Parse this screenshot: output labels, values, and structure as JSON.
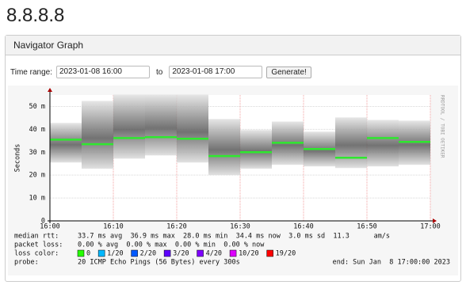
{
  "page_title": "8.8.8.8",
  "panel": {
    "header": "Navigator Graph"
  },
  "form": {
    "time_range_label": "Time range:",
    "start": "2023-01-08 16:00",
    "to_label": "to",
    "end": "2023-01-08 17:00",
    "button": "Generate!"
  },
  "chart_data": {
    "type": "smoke",
    "ylabel": "Seconds",
    "side_note": "RRDTOOL / TOBI OETIKER",
    "x": [
      "16:00",
      "16:05",
      "16:10",
      "16:15",
      "16:20",
      "16:25",
      "16:30",
      "16:35",
      "16:40",
      "16:45",
      "16:50",
      "16:55"
    ],
    "xlim": [
      "16:00",
      "17:00"
    ],
    "xticks": [
      "16:00",
      "16:10",
      "16:20",
      "16:30",
      "16:40",
      "16:50",
      "17:00"
    ],
    "ylim": [
      0,
      0.055
    ],
    "yticks": [
      0,
      {
        "value": 0.01,
        "label": "10 m"
      },
      {
        "value": 0.02,
        "label": "20 m"
      },
      {
        "value": 0.03,
        "label": "30 m"
      },
      {
        "value": 0.04,
        "label": "40 m"
      },
      {
        "value": 0.05,
        "label": "50 m"
      }
    ],
    "grid": true,
    "series": [
      {
        "name": "median",
        "color": "#2ee82e",
        "values": [
          0.0355,
          0.0335,
          0.0362,
          0.0366,
          0.0359,
          0.0283,
          0.03,
          0.0341,
          0.0314,
          0.0276,
          0.0362,
          0.0345
        ]
      },
      {
        "name": "min",
        "color": "#bdbdbd",
        "values": [
          0.0255,
          0.0228,
          0.0272,
          0.0286,
          0.0255,
          0.02,
          0.0228,
          0.0245,
          0.0238,
          0.0231,
          0.0238,
          0.0245
        ]
      },
      {
        "name": "max",
        "color": "#bdbdbd",
        "values": [
          0.0428,
          0.0524,
          0.0552,
          0.0552,
          0.0552,
          0.0445,
          0.0397,
          0.0434,
          0.039,
          0.0452,
          0.0441,
          0.0438
        ]
      }
    ],
    "stats": [
      {
        "label": "median rtt:",
        "text": "33.7 ms avg  36.9 ms max  28.0 ms min  34.4 ms now  3.0 ms sd  11.3      am/s"
      },
      {
        "label": "packet loss:",
        "text": "0.00 % avg  0.00 % max  0.00 % min  0.00 % now"
      }
    ],
    "loss_label": "loss color:",
    "loss_colors": [
      {
        "name": "0",
        "color": "#26ff00"
      },
      {
        "name": "1/20",
        "color": "#00b8ff"
      },
      {
        "name": "2/20",
        "color": "#0059ff"
      },
      {
        "name": "3/20",
        "color": "#5e00ff"
      },
      {
        "name": "4/20",
        "color": "#7e00ff"
      },
      {
        "name": "10/20",
        "color": "#dd00ff"
      },
      {
        "name": "19/20",
        "color": "#ff0000"
      }
    ],
    "probe_label": "probe:",
    "probe": "20 ICMP Echo Pings (56 Bytes) every 300s",
    "end": "end: Sun Jan  8 17:00:00 2023"
  }
}
